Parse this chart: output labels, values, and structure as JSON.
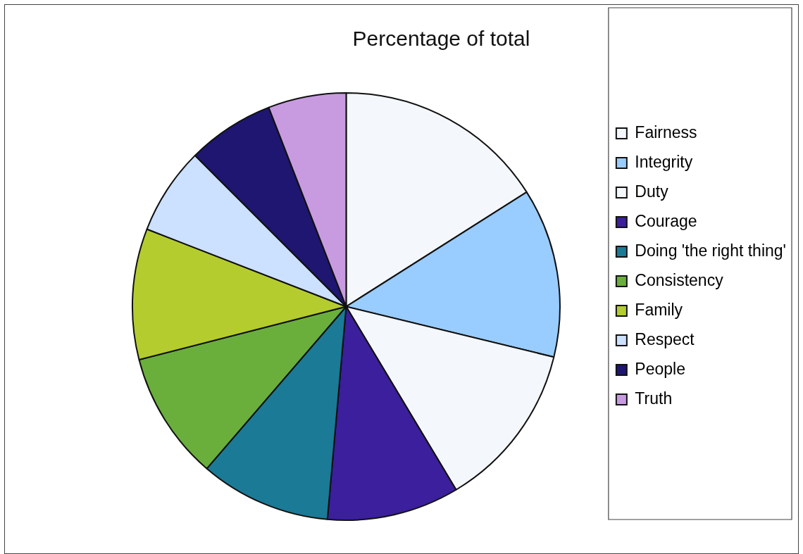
{
  "chart_data": {
    "type": "pie",
    "title": "Percentage of total",
    "categories": [
      "Fairness",
      "Integrity",
      "Duty",
      "Courage",
      "Doing 'the right thing'",
      "Consistency",
      "Family",
      "Respect",
      "People",
      "Truth"
    ],
    "values": [
      16.0,
      12.8,
      12.6,
      10.0,
      9.9,
      9.7,
      9.9,
      6.6,
      6.6,
      5.9
    ],
    "colors": [
      "#f4f7fb",
      "#99ccff",
      "#f4f7fb",
      "#3b1f9c",
      "#1b7a96",
      "#6aaf3c",
      "#b5cc2e",
      "#cce0ff",
      "#1e1670",
      "#c89be0"
    ],
    "legend": "right"
  }
}
